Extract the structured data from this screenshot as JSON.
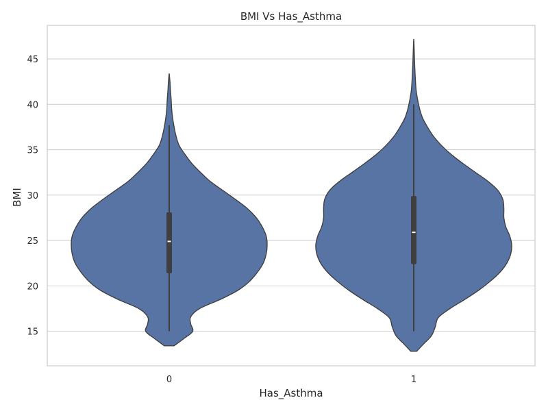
{
  "chart_data": {
    "type": "violin",
    "title": "BMI Vs Has_Asthma",
    "xlabel": "Has_Asthma",
    "ylabel": "BMI",
    "categories": [
      "0",
      "1"
    ],
    "yticks": [
      15,
      20,
      25,
      30,
      35,
      40,
      45
    ],
    "ylim": [
      11.2,
      48.7
    ],
    "grid": "horizontal",
    "colors": {
      "fill": "#5874a5",
      "edge": "#404040",
      "box": "#3f3f3f",
      "median": "#ffffff",
      "grid": "#d0d0d0",
      "frame": "#cccccc"
    },
    "violins": [
      {
        "category": "0",
        "min": 15.0,
        "q1": 21.4,
        "median": 24.9,
        "q3": 28.1,
        "whisker_high": 37.7,
        "density_top": 43.4,
        "density_bottom": 13.4,
        "profile": [
          [
            13.4,
            0.05
          ],
          [
            14.2,
            0.15
          ],
          [
            15.0,
            0.24
          ],
          [
            15.8,
            0.22
          ],
          [
            16.6,
            0.22
          ],
          [
            17.5,
            0.31
          ],
          [
            18.5,
            0.52
          ],
          [
            19.5,
            0.7
          ],
          [
            20.5,
            0.82
          ],
          [
            21.5,
            0.9
          ],
          [
            22.5,
            0.96
          ],
          [
            23.5,
            0.99
          ],
          [
            24.5,
            1.0
          ],
          [
            25.5,
            0.99
          ],
          [
            26.5,
            0.95
          ],
          [
            27.5,
            0.89
          ],
          [
            28.5,
            0.8
          ],
          [
            29.5,
            0.68
          ],
          [
            30.5,
            0.55
          ],
          [
            31.5,
            0.42
          ],
          [
            32.5,
            0.32
          ],
          [
            33.5,
            0.23
          ],
          [
            34.5,
            0.16
          ],
          [
            35.5,
            0.1
          ],
          [
            36.5,
            0.07
          ],
          [
            37.5,
            0.05
          ],
          [
            38.5,
            0.035
          ],
          [
            39.5,
            0.025
          ],
          [
            40.5,
            0.02
          ],
          [
            41.5,
            0.013
          ],
          [
            42.5,
            0.008
          ],
          [
            43.4,
            0.0
          ]
        ]
      },
      {
        "category": "1",
        "min": 15.0,
        "q1": 22.4,
        "median": 25.9,
        "q3": 29.9,
        "whisker_high": 40.0,
        "density_top": 47.2,
        "density_bottom": 12.8,
        "profile": [
          [
            12.8,
            0.03
          ],
          [
            13.6,
            0.1
          ],
          [
            14.5,
            0.18
          ],
          [
            15.5,
            0.22
          ],
          [
            16.5,
            0.25
          ],
          [
            17.5,
            0.37
          ],
          [
            18.5,
            0.52
          ],
          [
            19.5,
            0.66
          ],
          [
            20.5,
            0.78
          ],
          [
            21.5,
            0.88
          ],
          [
            22.5,
            0.95
          ],
          [
            23.5,
            0.99
          ],
          [
            24.5,
            1.0
          ],
          [
            25.5,
            0.98
          ],
          [
            26.5,
            0.94
          ],
          [
            27.5,
            0.92
          ],
          [
            28.5,
            0.92
          ],
          [
            29.5,
            0.91
          ],
          [
            30.5,
            0.86
          ],
          [
            31.5,
            0.76
          ],
          [
            32.5,
            0.63
          ],
          [
            33.5,
            0.5
          ],
          [
            34.5,
            0.38
          ],
          [
            35.5,
            0.28
          ],
          [
            36.5,
            0.2
          ],
          [
            37.5,
            0.14
          ],
          [
            38.5,
            0.09
          ],
          [
            39.5,
            0.06
          ],
          [
            40.5,
            0.04
          ],
          [
            41.5,
            0.025
          ],
          [
            42.5,
            0.018
          ],
          [
            43.5,
            0.013
          ],
          [
            44.5,
            0.009
          ],
          [
            45.5,
            0.006
          ],
          [
            46.5,
            0.003
          ],
          [
            47.2,
            0.0
          ]
        ]
      }
    ]
  }
}
